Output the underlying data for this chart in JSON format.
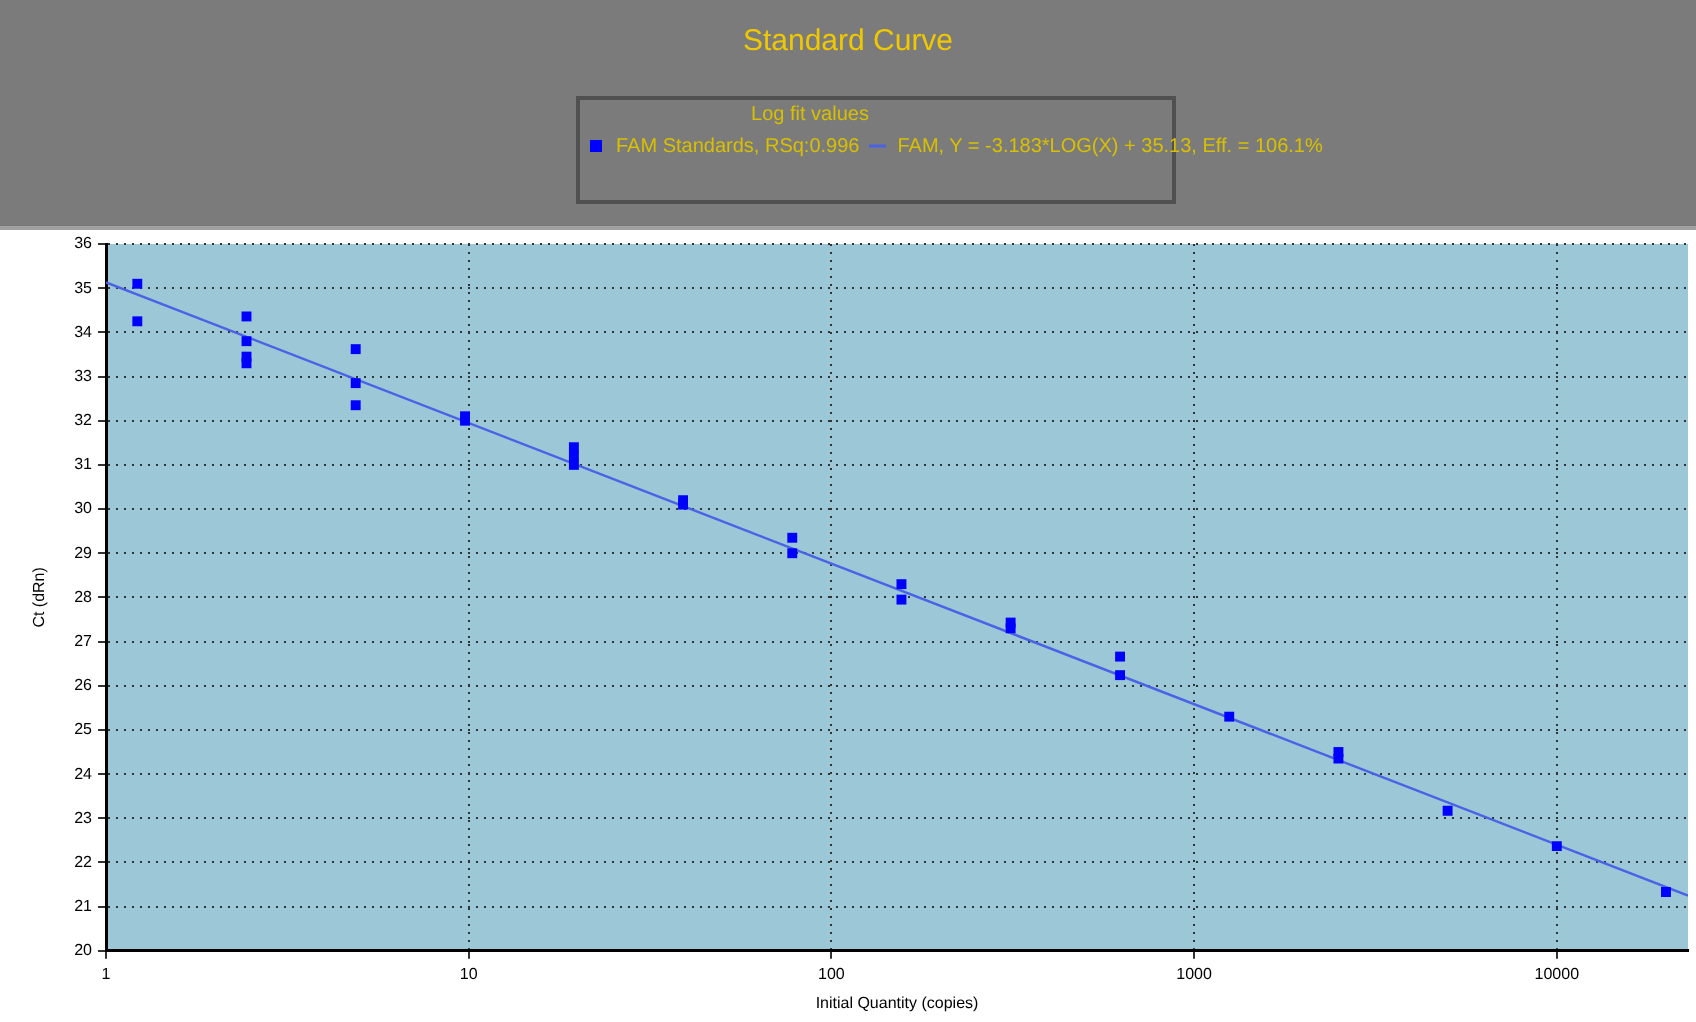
{
  "chart_data": {
    "type": "scatter",
    "title": "Standard Curve",
    "legend_title": "Log fit values",
    "xlabel": "Initial Quantity (copies)",
    "ylabel": "Ct (dRn)",
    "log": "x",
    "grid": true,
    "legend": "top",
    "xlim": [
      1,
      23000
    ],
    "xticks": [
      1,
      10,
      100,
      1000,
      10000
    ],
    "ylim": [
      20,
      36
    ],
    "yticks": [
      20,
      21,
      22,
      23,
      24,
      25,
      26,
      27,
      28,
      29,
      30,
      31,
      32,
      33,
      34,
      35,
      36
    ],
    "series": [
      {
        "name": "FAM Standards, RSq:0.996",
        "marker": "square",
        "color": "#0000ff",
        "x": [
          1.22,
          1.22,
          2.44,
          2.44,
          2.44,
          2.44,
          4.88,
          4.88,
          4.88,
          9.77,
          9.77,
          19.5,
          19.5,
          19.5,
          39,
          39,
          78,
          78,
          156,
          156,
          312,
          312,
          625,
          625,
          1250,
          2500,
          2500,
          5000,
          10000,
          20000
        ],
        "values": [
          35.1,
          34.25,
          34.36,
          33.8,
          33.45,
          33.3,
          33.62,
          32.85,
          32.35,
          32.1,
          32.0,
          31.4,
          31.2,
          31.0,
          30.2,
          30.1,
          29.35,
          29.0,
          28.3,
          27.95,
          27.43,
          27.3,
          26.66,
          26.24,
          25.3,
          24.5,
          24.35,
          23.17,
          22.37,
          21.33
        ]
      },
      {
        "name": "FAM, Y = -3.183*LOG(X) + 35.13, Eff. = 106.1%",
        "type": "line",
        "marker": "none",
        "color": "#4a62e6",
        "x": [
          1,
          23000
        ],
        "values": [
          35.13,
          21.25
        ]
      }
    ]
  }
}
